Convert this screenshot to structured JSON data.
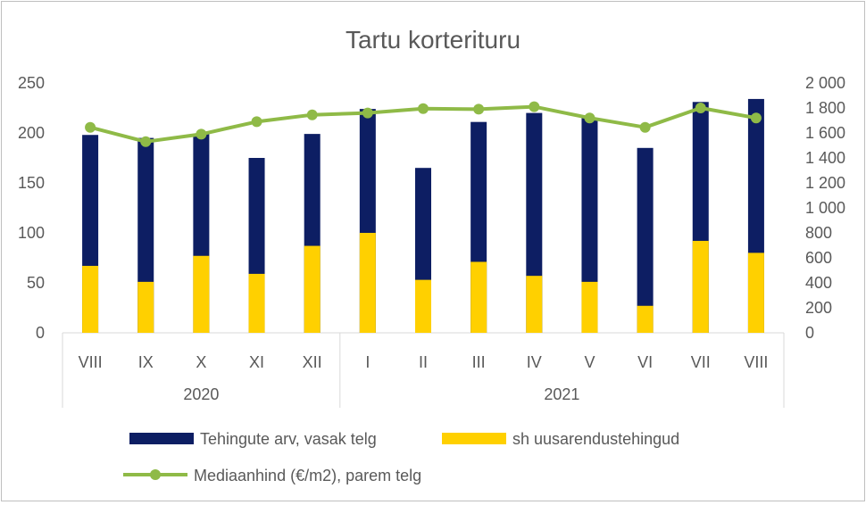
{
  "chart_data": {
    "type": "bar",
    "title": "Tartu korterituru",
    "categories": [
      "VIII",
      "IX",
      "X",
      "XI",
      "XII",
      "I",
      "II",
      "III",
      "IV",
      "V",
      "VI",
      "VII",
      "VIII"
    ],
    "groups": [
      {
        "label": "2020",
        "count": 5
      },
      {
        "label": "2021",
        "count": 8
      }
    ],
    "series": [
      {
        "name": "Tehingute arv, vasak telg",
        "axis": "left",
        "kind": "bar",
        "color": "#0d1e63",
        "values": [
          198,
          195,
          199,
          175,
          199,
          224,
          165,
          211,
          220,
          215,
          185,
          231,
          234
        ]
      },
      {
        "name": "sh uusarendustehingud",
        "axis": "left",
        "kind": "bar-overlay",
        "color": "#ffd000",
        "values": [
          67,
          51,
          77,
          59,
          87,
          100,
          53,
          71,
          57,
          51,
          27,
          92,
          80
        ]
      },
      {
        "name": "Mediaanhind (€/m2), parem telg",
        "axis": "right",
        "kind": "line",
        "color": "#8fba47",
        "values": [
          1645,
          1530,
          1590,
          1690,
          1745,
          1760,
          1795,
          1790,
          1810,
          1720,
          1645,
          1800,
          1720
        ]
      }
    ],
    "y_left": {
      "min": 0,
      "max": 250,
      "ticks": [
        "0",
        "50",
        "100",
        "150",
        "200",
        "250"
      ],
      "tick_values": [
        0,
        50,
        100,
        150,
        200,
        250
      ]
    },
    "y_right": {
      "min": 0,
      "max": 2000,
      "ticks": [
        "0",
        "200",
        "400",
        "600",
        "800",
        "1 000",
        "1 200",
        "1 400",
        "1 600",
        "1 800",
        "2 000"
      ],
      "tick_values": [
        0,
        200,
        400,
        600,
        800,
        1000,
        1200,
        1400,
        1600,
        1800,
        2000
      ]
    },
    "grid": false,
    "legend_position": "bottom"
  }
}
